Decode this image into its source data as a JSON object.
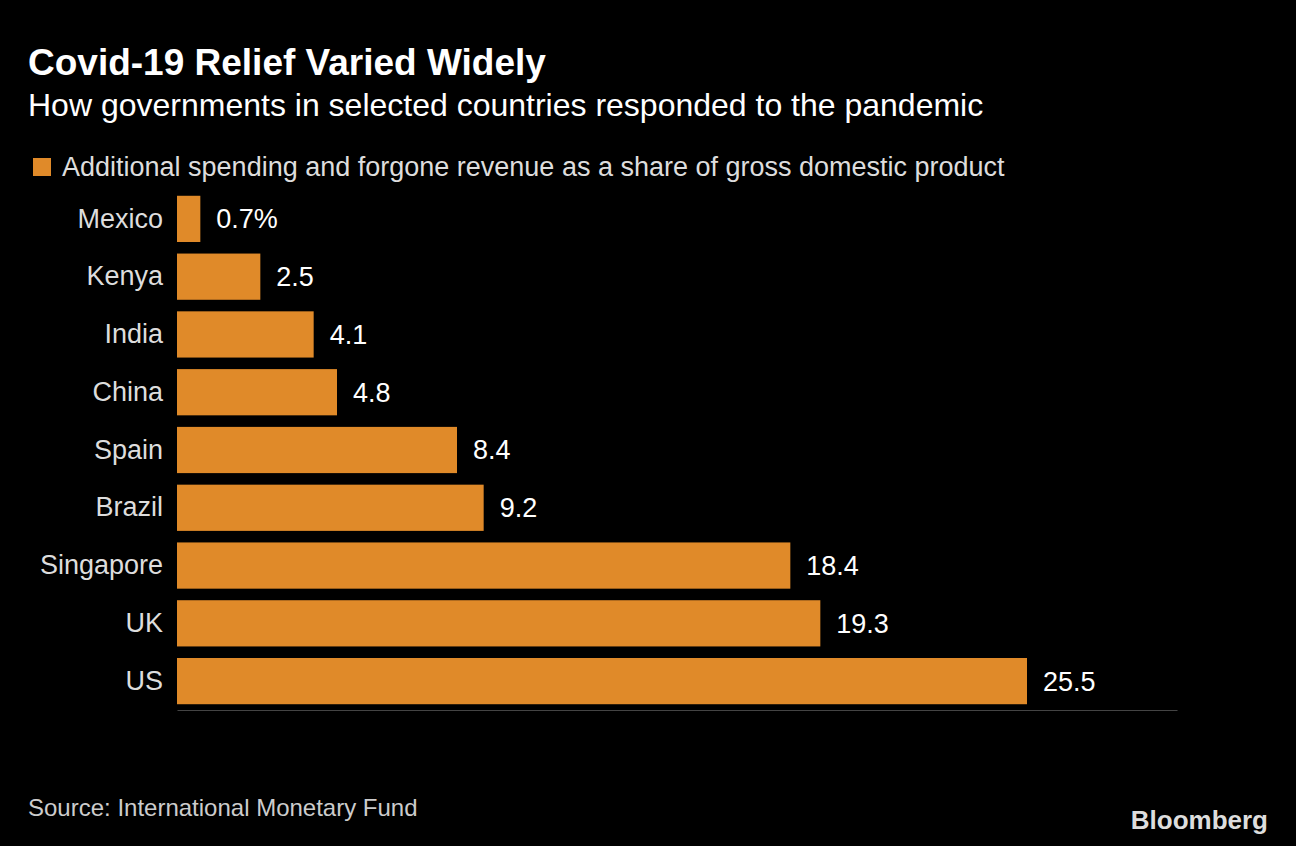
{
  "chart_data": {
    "type": "bar",
    "orientation": "horizontal",
    "title": "Covid-19 Relief Varied Widely",
    "subtitle": "How governments in selected countries responded to the pandemic",
    "categories": [
      "Mexico",
      "Kenya",
      "India",
      "China",
      "Spain",
      "Brazil",
      "Singapore",
      "UK",
      "US"
    ],
    "series": [
      {
        "name": "Additional spending and forgone revenue as a share of gross domestic product",
        "color": "#e08a29",
        "values": [
          0.7,
          2.5,
          4.1,
          4.8,
          8.4,
          9.2,
          18.4,
          19.3,
          25.5
        ],
        "value_labels": [
          "0.7%",
          "2.5",
          "4.1",
          "4.8",
          "8.4",
          "9.2",
          "18.4",
          "19.3",
          "25.5"
        ]
      }
    ],
    "xlim": [
      0,
      30
    ],
    "legend": "top-left",
    "data_labels": true,
    "tick_labels": "y",
    "grid": false,
    "source": "Source: International Monetary Fund",
    "logo": "Bloomberg"
  }
}
